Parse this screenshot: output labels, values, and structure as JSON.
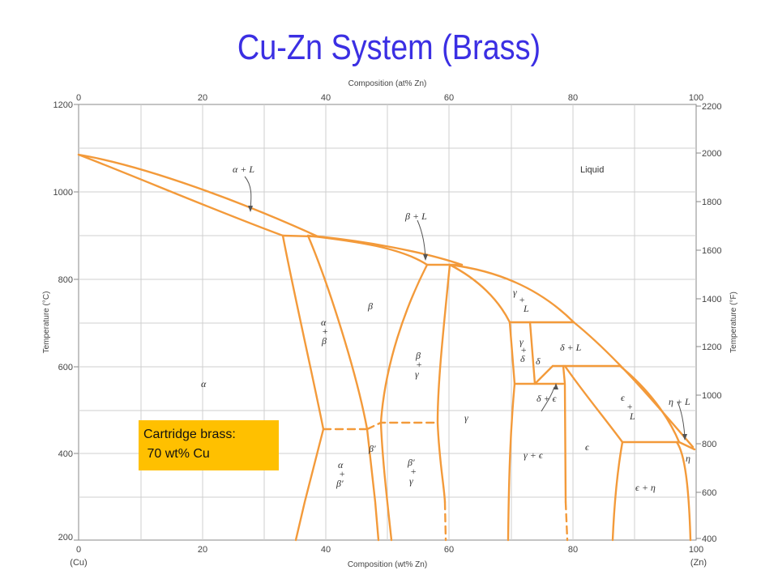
{
  "title": "Cu-Zn System (Brass)",
  "axes": {
    "top_label": "Composition (at% Zn)",
    "bottom_label": "Composition (wt% Zn)",
    "left_label": "Temperature (°C)",
    "right_label": "Temperature (°F)",
    "top_ticks": [
      "0",
      "20",
      "40",
      "60",
      "80",
      "100"
    ],
    "bottom_ticks": [
      "0",
      "20",
      "40",
      "60",
      "80",
      "100"
    ],
    "left_ticks": [
      "1200",
      "1000",
      "800",
      "600",
      "400",
      "200"
    ],
    "right_ticks": [
      "2200",
      "2000",
      "1800",
      "1600",
      "1400",
      "1200",
      "1000",
      "800",
      "600",
      "400"
    ],
    "left_end": "(Cu)",
    "right_end": "(Zn)"
  },
  "phases": {
    "liquid": "Liquid",
    "alpha_L": "α + L",
    "beta_L": "β + L",
    "gamma_L_1": "γ",
    "gamma_L_2": "+",
    "gamma_L_3": "L",
    "alpha": "α",
    "beta": "β",
    "alpha_beta_1": "α",
    "alpha_beta_2": "+",
    "alpha_beta_3": "β",
    "beta_gamma_1": "β",
    "beta_gamma_2": "+",
    "beta_gamma_3": "γ",
    "gamma": "γ",
    "gamma_delta_1": "γ",
    "gamma_delta_2": "+",
    "gamma_delta_3": "δ",
    "delta": "δ",
    "delta_L": "δ + L",
    "delta_eps": "δ + ϵ",
    "eps_L_1": "ϵ",
    "eps_L_2": "+",
    "eps_L_3": "L",
    "eta_L": "η + L",
    "eps": "ϵ",
    "eta": "η",
    "eps_eta": "ϵ + η",
    "gamma_eps": "γ + ϵ",
    "beta_prime": "β′",
    "alpha_betap_1": "α",
    "alpha_betap_2": "+",
    "alpha_betap_3": "β′",
    "betap_gamma_1": "β′",
    "betap_gamma_2": "+",
    "betap_gamma_3": "γ"
  },
  "callout": {
    "line1": "Cartridge brass:",
    "line2": " 70 wt% Cu"
  },
  "colors": {
    "title": "#3b2fe3",
    "phase_boundary": "#f39a3a",
    "callout_bg": "#ffc000"
  }
}
